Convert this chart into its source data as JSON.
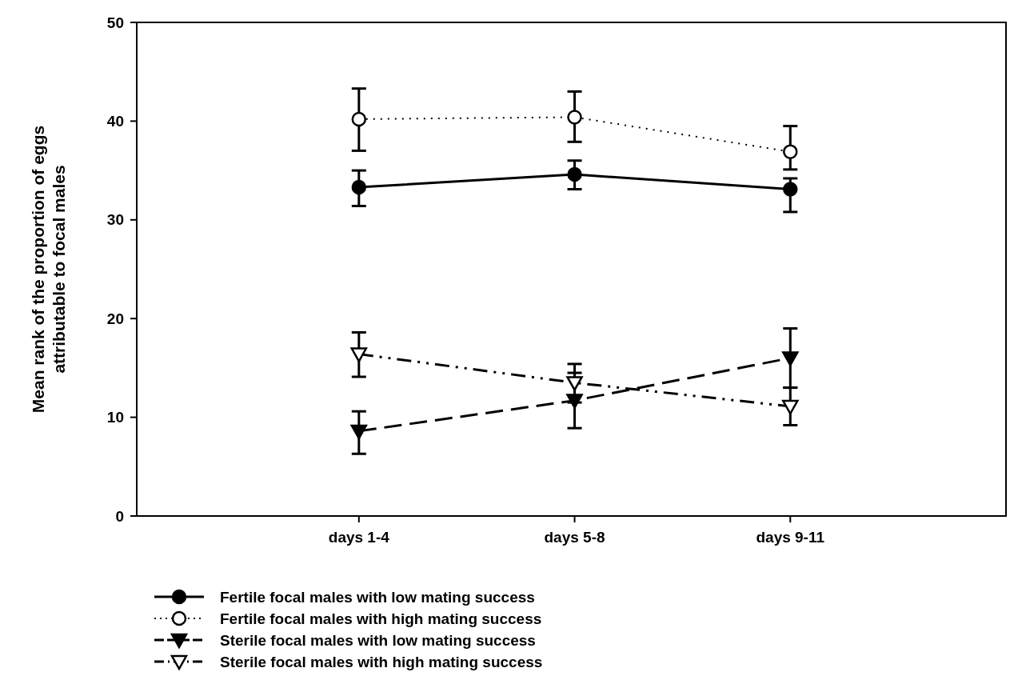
{
  "chart_data": {
    "type": "line",
    "ylabel": "Mean rank of the proportion of eggs\nattributable to focal males",
    "categories": [
      "days 1-4",
      "days 5-8",
      "days 9-11"
    ],
    "ylim": [
      0,
      50
    ],
    "yticks": [
      0,
      10,
      20,
      30,
      40,
      50
    ],
    "grid": false,
    "legend": "bottom",
    "series": [
      {
        "name": "Fertile focal males with low mating success",
        "color": "#000000",
        "values": [
          33.3,
          34.6,
          33.1
        ],
        "errors": [
          [
            31.4,
            35.0
          ],
          [
            33.1,
            36.0
          ],
          [
            30.8,
            34.2
          ]
        ],
        "marker": "circle",
        "line_style": "solid"
      },
      {
        "name": "Fertile focal males with high mating success",
        "color": "#000000",
        "values": [
          40.2,
          40.4,
          36.9
        ],
        "errors": [
          [
            37.0,
            43.3
          ],
          [
            37.9,
            43.0
          ],
          [
            35.1,
            39.5
          ]
        ],
        "marker": "circle",
        "line_style": "dotted"
      },
      {
        "name": "Sterile focal males with low mating success",
        "color": "#000000",
        "values": [
          8.6,
          11.7,
          16.0
        ],
        "errors": [
          [
            6.3,
            10.6
          ],
          [
            8.9,
            14.5
          ],
          [
            13.0,
            19.0
          ]
        ],
        "marker": "triangle",
        "line_style": "dashed"
      },
      {
        "name": "Sterile focal males with high mating success",
        "color": "#000000",
        "values": [
          16.4,
          13.5,
          11.1
        ],
        "errors": [
          [
            14.1,
            18.6
          ],
          [
            11.5,
            15.4
          ],
          [
            9.2,
            13.0
          ]
        ],
        "marker": "triangle",
        "line_style": "dashed"
      }
    ]
  }
}
